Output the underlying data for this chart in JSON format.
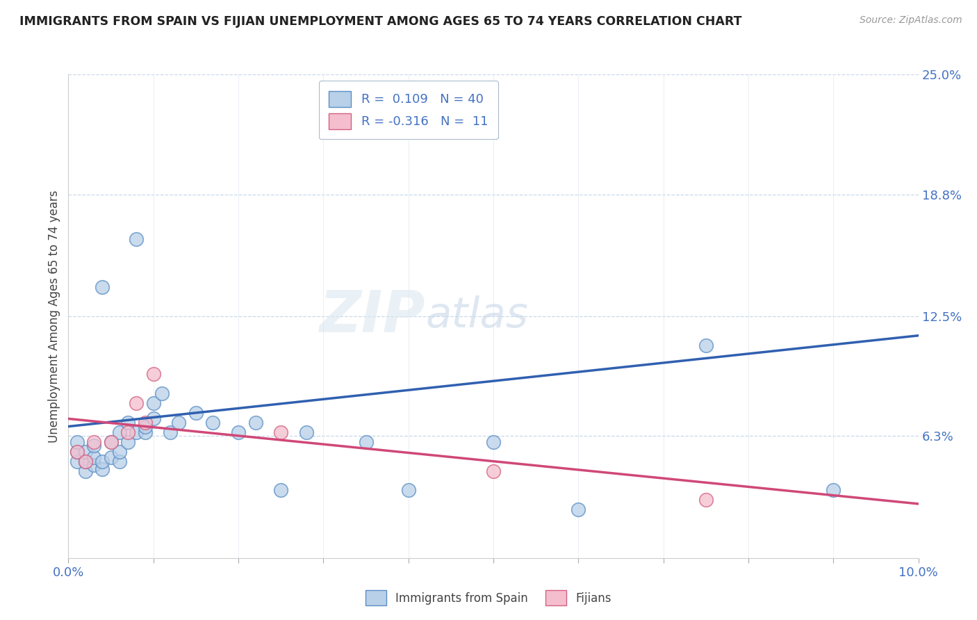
{
  "title": "IMMIGRANTS FROM SPAIN VS FIJIAN UNEMPLOYMENT AMONG AGES 65 TO 74 YEARS CORRELATION CHART",
  "source": "Source: ZipAtlas.com",
  "ylabel": "Unemployment Among Ages 65 to 74 years",
  "xlim": [
    0.0,
    0.1
  ],
  "ylim": [
    0.0,
    0.25
  ],
  "xticks": [
    0.0,
    0.01,
    0.02,
    0.03,
    0.04,
    0.05,
    0.06,
    0.07,
    0.08,
    0.09,
    0.1
  ],
  "xticklabels": [
    "0.0%",
    "",
    "",
    "",
    "",
    "",
    "",
    "",
    "",
    "",
    "10.0%"
  ],
  "yticks_right": [
    0.063,
    0.125,
    0.188,
    0.25
  ],
  "yticks_right_labels": [
    "6.3%",
    "12.5%",
    "18.8%",
    "25.0%"
  ],
  "r_blue": 0.109,
  "n_blue": 40,
  "r_pink": -0.316,
  "n_pink": 11,
  "blue_color": "#b8d0e8",
  "pink_color": "#f4bece",
  "blue_edge_color": "#5b8ec4",
  "pink_edge_color": "#d46080",
  "blue_line_color": "#3060b0",
  "pink_line_color": "#d04878",
  "watermark_zip": "ZIP",
  "watermark_atlas": "atlas",
  "legend_label_blue": "Immigrants from Spain",
  "legend_label_pink": "Fijians",
  "blue_scatter_x": [
    0.001,
    0.001,
    0.001,
    0.002,
    0.002,
    0.002,
    0.003,
    0.003,
    0.003,
    0.004,
    0.004,
    0.004,
    0.005,
    0.005,
    0.006,
    0.006,
    0.006,
    0.007,
    0.007,
    0.008,
    0.008,
    0.009,
    0.009,
    0.01,
    0.01,
    0.011,
    0.012,
    0.013,
    0.015,
    0.017,
    0.02,
    0.022,
    0.025,
    0.028,
    0.035,
    0.04,
    0.05,
    0.06,
    0.075,
    0.09
  ],
  "blue_scatter_y": [
    0.05,
    0.055,
    0.06,
    0.045,
    0.05,
    0.055,
    0.048,
    0.052,
    0.058,
    0.046,
    0.05,
    0.14,
    0.052,
    0.06,
    0.05,
    0.055,
    0.065,
    0.06,
    0.07,
    0.065,
    0.165,
    0.065,
    0.068,
    0.072,
    0.08,
    0.085,
    0.065,
    0.07,
    0.075,
    0.07,
    0.065,
    0.07,
    0.035,
    0.065,
    0.06,
    0.035,
    0.06,
    0.025,
    0.11,
    0.035
  ],
  "pink_scatter_x": [
    0.001,
    0.002,
    0.003,
    0.005,
    0.007,
    0.008,
    0.009,
    0.01,
    0.025,
    0.05,
    0.075
  ],
  "pink_scatter_y": [
    0.055,
    0.05,
    0.06,
    0.06,
    0.065,
    0.08,
    0.07,
    0.095,
    0.065,
    0.045,
    0.03
  ],
  "blue_trend_x": [
    0.0,
    0.1
  ],
  "blue_trend_y": [
    0.068,
    0.115
  ],
  "pink_trend_x": [
    0.0,
    0.1
  ],
  "pink_trend_y": [
    0.072,
    0.028
  ]
}
